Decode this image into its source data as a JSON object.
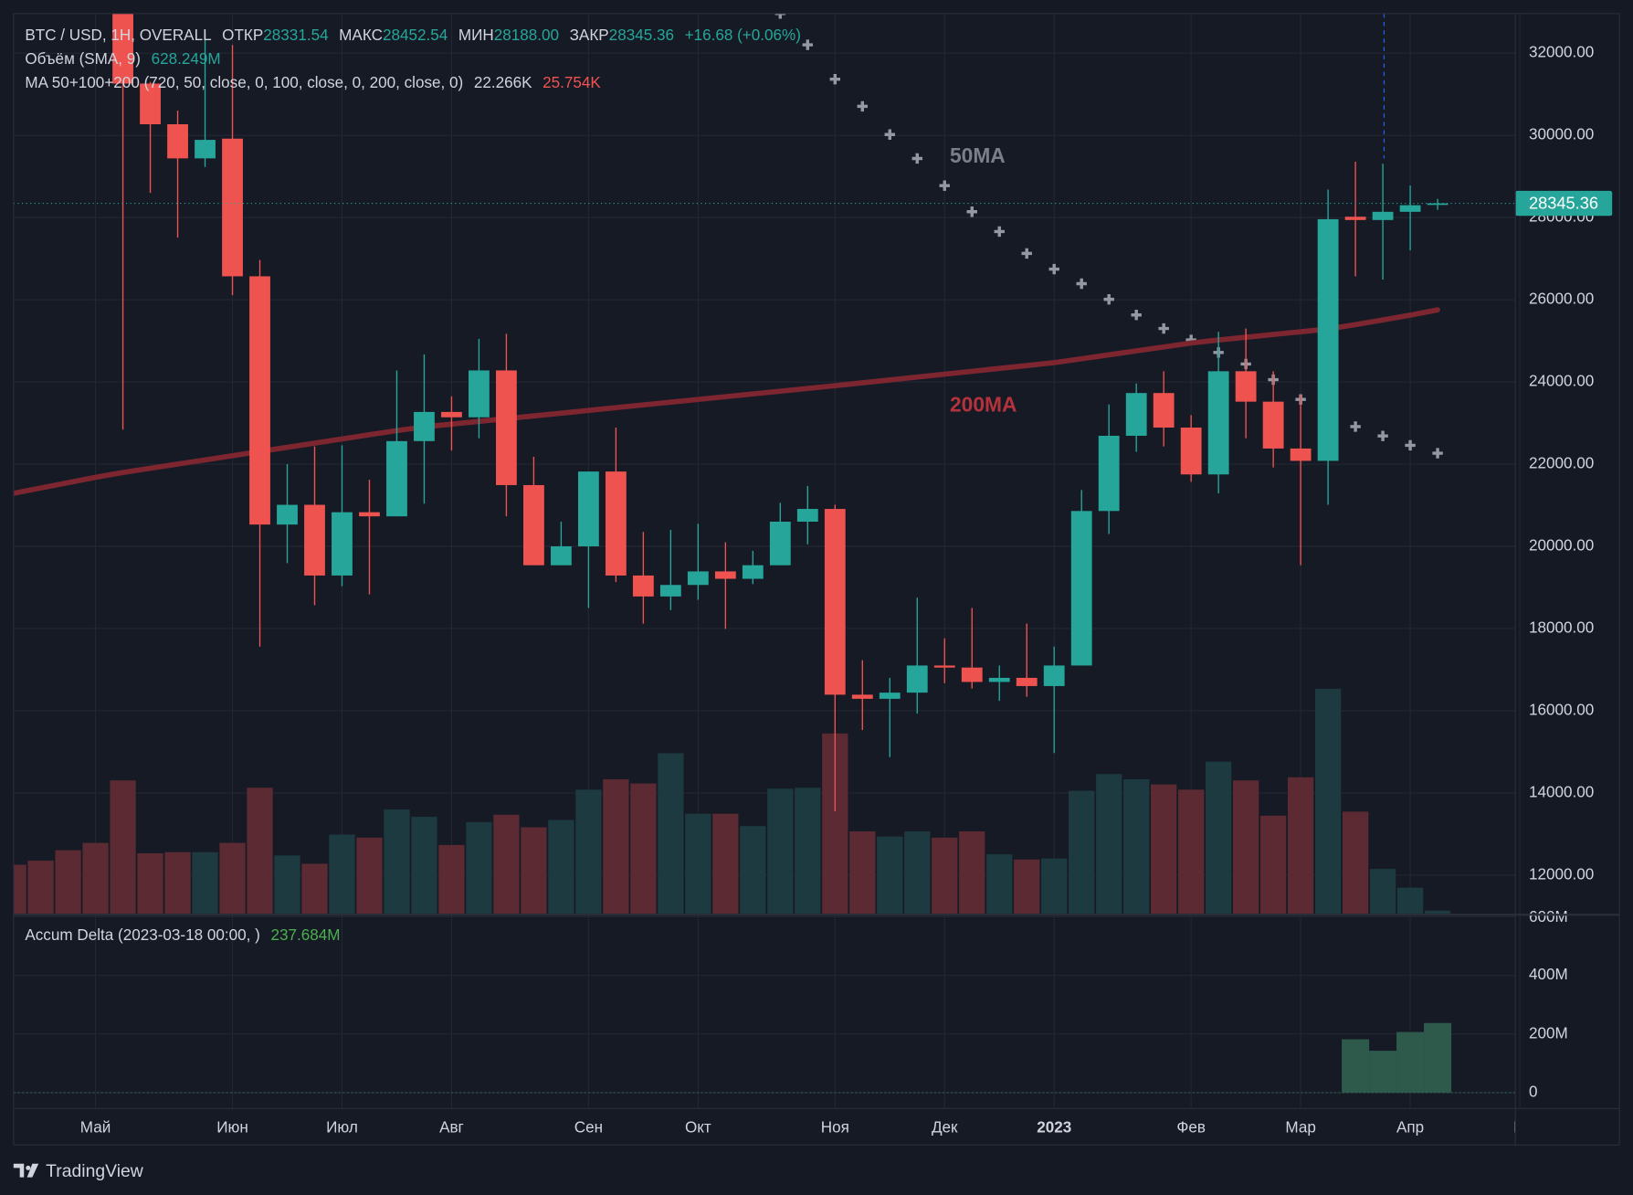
{
  "header": {
    "symbol": "BTC / USD, 1H, OVERALL",
    "ohlc": [
      {
        "label": "ОТКР",
        "value": "28331.54"
      },
      {
        "label": "МАКС",
        "value": "28452.54"
      },
      {
        "label": "МИН",
        "value": "28188.00"
      },
      {
        "label": "ЗАКР",
        "value": "28345.36"
      }
    ],
    "change": "+16.68 (+0.06%)",
    "volume_title": "Объём (SMA, 9)",
    "volume_value": "628.249M",
    "ma_title": "MA 50+100+200 (720, 50, close, 0, 100, close, 0, 200, close, 0)",
    "ma_values": [
      "22.266K",
      "25.754K"
    ],
    "delta_title": "Accum Delta (2023-03-18 00:00, )",
    "delta_value": "237.684M"
  },
  "footer": {
    "brand": "TradingView"
  },
  "chart_data": {
    "type": "candlestick",
    "up_color": "#26a69a",
    "down_color": "#ef5350",
    "categories": [
      null,
      null,
      null,
      "Май",
      null,
      null,
      null,
      null,
      "Июн",
      null,
      null,
      null,
      "Июл",
      null,
      null,
      null,
      "Авг",
      null,
      null,
      null,
      null,
      "Сен",
      null,
      null,
      null,
      "Окт",
      null,
      null,
      null,
      null,
      "Ноя",
      null,
      null,
      null,
      "Дек",
      null,
      null,
      null,
      "2023",
      null,
      null,
      null,
      null,
      "Фев",
      null,
      null,
      null,
      "Мар",
      null,
      null,
      null,
      "Апр",
      null,
      null,
      null,
      "М"
    ],
    "open": [
      null,
      null,
      null,
      null,
      34000,
      31260,
      30270,
      29440,
      29920,
      26570,
      20530,
      21010,
      19290,
      20830,
      20730,
      22560,
      23270,
      23140,
      24280,
      21490,
      19540,
      20000,
      21820,
      19290,
      18780,
      19060,
      19390,
      19210,
      19540,
      20600,
      20910,
      16390,
      16290,
      16440,
      17100,
      17050,
      16700,
      16800,
      16600,
      17100,
      20860,
      22690,
      23730,
      22890,
      21750,
      24260,
      23520,
      22380,
      22080,
      28020,
      27940,
      28140,
      28331.54,
      null,
      null,
      null
    ],
    "high": [
      null,
      null,
      null,
      null,
      34500,
      31300,
      30600,
      32500,
      32200,
      26970,
      22000,
      22430,
      22460,
      21620,
      24280,
      24670,
      23650,
      25050,
      25170,
      22180,
      20600,
      21820,
      22890,
      20350,
      20400,
      20550,
      20100,
      19890,
      21060,
      21470,
      21010,
      17230,
      16800,
      18750,
      17760,
      18500,
      17100,
      18120,
      17560,
      21370,
      23450,
      23960,
      24260,
      23190,
      25220,
      25300,
      24260,
      23700,
      28680,
      29360,
      29310,
      28780,
      28452.54,
      null,
      null,
      null
    ],
    "low": [
      null,
      null,
      null,
      null,
      22840,
      28600,
      27510,
      29230,
      26110,
      17560,
      19590,
      18570,
      19030,
      18830,
      20730,
      21040,
      22330,
      22630,
      20730,
      19540,
      19540,
      18500,
      19130,
      18120,
      18450,
      18700,
      17990,
      19080,
      19540,
      20050,
      13550,
      15530,
      14870,
      15930,
      16670,
      16540,
      16240,
      16340,
      14970,
      17100,
      20300,
      22300,
      22430,
      21570,
      21290,
      22630,
      21920,
      19540,
      21010,
      26570,
      26490,
      27200,
      28188,
      null,
      null,
      null
    ],
    "close": [
      null,
      null,
      null,
      null,
      31260,
      30270,
      29440,
      29890,
      26570,
      20530,
      21010,
      19290,
      20830,
      20730,
      22560,
      23270,
      23140,
      24280,
      21490,
      19540,
      20000,
      21820,
      19290,
      18780,
      19060,
      19390,
      19210,
      19540,
      20600,
      20910,
      16390,
      16290,
      16440,
      17100,
      17050,
      16700,
      16800,
      16600,
      17100,
      20860,
      22690,
      23730,
      22890,
      21750,
      24260,
      23520,
      22380,
      22080,
      27960,
      27940,
      28140,
      28300,
      28345.36,
      null,
      null,
      null
    ],
    "series": [
      {
        "name": "50MA",
        "color": "#9598a1",
        "values": [
          null,
          null,
          null,
          null,
          null,
          null,
          null,
          null,
          null,
          null,
          null,
          null,
          null,
          null,
          null,
          null,
          null,
          null,
          null,
          null,
          null,
          null,
          null,
          null,
          null,
          null,
          null,
          null,
          32964,
          32203,
          31366,
          30706,
          30020,
          29437,
          28777,
          28142,
          27660,
          27127,
          26746,
          26391,
          26010,
          25630,
          25300,
          25021,
          24716,
          24437,
          24056,
          23574,
          23244,
          22914,
          22686,
          22457,
          22266,
          null,
          null,
          null
        ]
      },
      {
        "name": "200MA",
        "color": "#7d2630",
        "values": [
          21290,
          21420,
          21550,
          21680,
          21797,
          21899,
          22001,
          22103,
          22205,
          22307,
          22409,
          22511,
          22613,
          22715,
          22817,
          22906,
          22973,
          23040,
          23107,
          23173,
          23240,
          23307,
          23374,
          23441,
          23508,
          23574,
          23641,
          23708,
          23775,
          23842,
          23909,
          23979,
          24049,
          24119,
          24189,
          24259,
          24329,
          24399,
          24469,
          24565,
          24660,
          24756,
          24851,
          24947,
          25021,
          25088,
          25155,
          25221,
          25288,
          25394,
          25510,
          25625,
          25754,
          null,
          null,
          null
        ]
      }
    ],
    "volume": {
      "values": [
        301,
        326,
        390,
        435,
        819,
        371,
        378,
        378,
        435,
        774,
        358,
        307,
        486,
        467,
        640,
        595,
        422,
        563,
        608,
        531,
        576,
        762,
        826,
        800,
        986,
        614,
        614,
        538,
        768,
        774,
        1107,
        506,
        474,
        506,
        467,
        506,
        365,
        333,
        339,
        755,
        858,
        826,
        794,
        762,
        934,
        819,
        602,
        838,
        1382,
        627,
        275,
        160,
        19,
        null,
        null,
        null
      ],
      "colors": [
        "#5b2a32",
        "#5b2a32",
        "#5b2a32",
        "#5b2a32",
        "#5b2a32",
        "#5b2a32",
        "#5b2a32",
        "#1c3a40",
        "#5b2a32",
        "#5b2a32",
        "#1c3a40",
        "#5b2a32",
        "#1c3a40",
        "#5b2a32",
        "#1c3a40",
        "#1c3a40",
        "#5b2a32",
        "#1c3a40",
        "#5b2a32",
        "#5b2a32",
        "#1c3a40",
        "#1c3a40",
        "#5b2a32",
        "#5b2a32",
        "#1c3a40",
        "#1c3a40",
        "#5b2a32",
        "#1c3a40",
        "#1c3a40",
        "#1c3a40",
        "#5b2a32",
        "#5b2a32",
        "#1c3a40",
        "#1c3a40",
        "#5b2a32",
        "#5b2a32",
        "#1c3a40",
        "#5b2a32",
        "#1c3a40",
        "#1c3a40",
        "#1c3a40",
        "#1c3a40",
        "#5b2a32",
        "#5b2a32",
        "#1c3a40",
        "#5b2a32",
        "#5b2a32",
        "#5b2a32",
        "#1c3a40",
        "#5b2a32",
        "#1c3a40",
        "#1c3a40",
        "#1c3a40",
        null,
        null,
        null
      ]
    },
    "ylim": [
      11061,
      32964
    ],
    "yticks": [
      {
        "value": 12000,
        "label": "12000.00"
      },
      {
        "value": 14000,
        "label": "14000.00"
      },
      {
        "value": 16000,
        "label": "16000.00"
      },
      {
        "value": 18000,
        "label": "18000.00"
      },
      {
        "value": 20000,
        "label": "20000.00"
      },
      {
        "value": 22000,
        "label": "22000.00"
      },
      {
        "value": 24000,
        "label": "24000.00"
      },
      {
        "value": 26000,
        "label": "26000.00"
      },
      {
        "value": 28000,
        "label": "28000.00"
      },
      {
        "value": 30000,
        "label": "30000.00"
      },
      {
        "value": 32000,
        "label": "32000.00"
      }
    ],
    "grid": true,
    "delta": {
      "color": "#2e5a4c",
      "values": [
        null,
        null,
        null,
        null,
        null,
        null,
        null,
        null,
        null,
        null,
        null,
        null,
        null,
        null,
        null,
        null,
        null,
        null,
        null,
        null,
        null,
        null,
        null,
        null,
        null,
        null,
        null,
        null,
        null,
        null,
        null,
        null,
        null,
        null,
        null,
        null,
        null,
        null,
        null,
        null,
        null,
        null,
        null,
        null,
        null,
        null,
        null,
        null,
        null,
        182,
        143,
        207,
        237.684,
        null,
        null,
        null
      ],
      "ylim": [
        -47,
        607
      ],
      "yticks": [
        0,
        {
          "value": 200,
          "label": "200M"
        },
        {
          "value": 400,
          "label": "400M"
        },
        {
          "value": 600,
          "label": "600M"
        }
      ]
    }
  }
}
